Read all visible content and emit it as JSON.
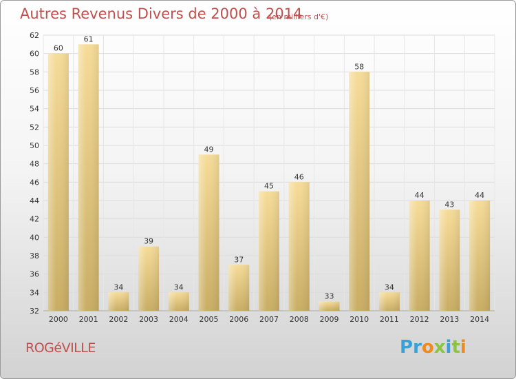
{
  "chart_data": {
    "type": "bar",
    "title": "Autres Revenus Divers de 2000 à 2014",
    "subtitle": "(en milliers d'€)",
    "categories": [
      "2000",
      "2001",
      "2002",
      "2003",
      "2004",
      "2005",
      "2006",
      "2007",
      "2008",
      "2009",
      "2010",
      "2011",
      "2012",
      "2013",
      "2014"
    ],
    "values": [
      60,
      61,
      34,
      39,
      34,
      49,
      37,
      45,
      46,
      33,
      58,
      34,
      44,
      43,
      44
    ],
    "ylim": [
      32,
      62
    ],
    "yticks": [
      32,
      34,
      36,
      38,
      40,
      42,
      44,
      46,
      48,
      50,
      52,
      54,
      56,
      58,
      60,
      62
    ],
    "grid": true,
    "bar_color": "#e8cc80"
  },
  "footer": {
    "city": "ROGéVILLE",
    "logo_letters": [
      {
        "ch": "P",
        "color": "#3aa0d8"
      },
      {
        "ch": "r",
        "color": "#3aa0d8"
      },
      {
        "ch": "o",
        "color": "#f08a1c"
      },
      {
        "ch": "x",
        "color": "#8bc540"
      },
      {
        "ch": "i",
        "color": "#3aa0d8"
      },
      {
        "ch": "t",
        "color": "#8bc540"
      },
      {
        "ch": "i",
        "color": "#f08a1c"
      }
    ]
  }
}
